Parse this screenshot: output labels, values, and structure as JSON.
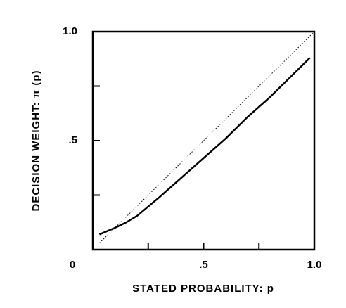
{
  "chart_data": {
    "type": "line",
    "x_label": "STATED PROBABILITY: p",
    "y_label": "DECISION WEIGHT: π (p)",
    "xlim": [
      0,
      1.0
    ],
    "ylim": [
      0,
      1.0
    ],
    "xticks": [
      0,
      {
        "value": 0.5,
        "label": ".5"
      },
      {
        "value": 1.0,
        "label": "1.0"
      }
    ],
    "yticks": [
      {
        "value": 0.5,
        "label": ".5"
      },
      {
        "value": 1.0,
        "label": "1.0"
      }
    ],
    "xminor": [
      0.25,
      0.75
    ],
    "yminor": [
      0.25,
      0.75
    ],
    "series": [
      {
        "color": "#000000",
        "style": "solid",
        "x": [
          0.03,
          0.1,
          0.15,
          0.2,
          0.3,
          0.4,
          0.5,
          0.6,
          0.7,
          0.8,
          0.9,
          0.98
        ],
        "values": [
          0.07,
          0.1,
          0.125,
          0.155,
          0.24,
          0.33,
          0.42,
          0.51,
          0.61,
          0.7,
          0.8,
          0.88
        ]
      },
      {
        "color": "#000000",
        "style": "dotted",
        "x": [
          0.03,
          1.0
        ],
        "values": [
          0.03,
          1.0
        ]
      }
    ]
  }
}
